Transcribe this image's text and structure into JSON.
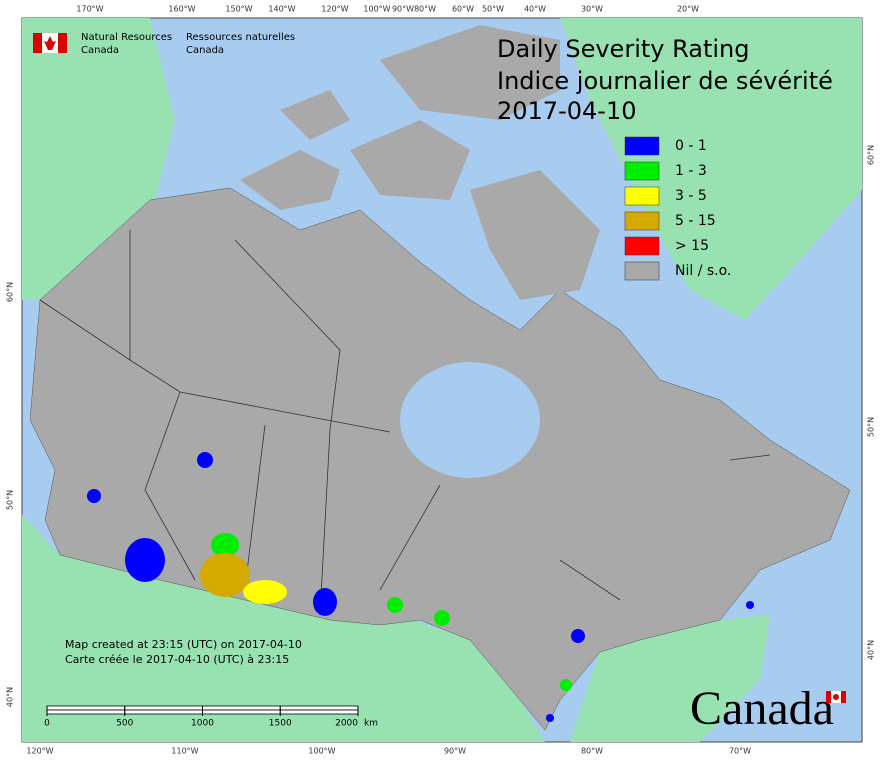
{
  "header": {
    "agency_en": [
      "Natural Resources",
      "Canada"
    ],
    "agency_fr": [
      "Ressources naturelles",
      "Canada"
    ]
  },
  "title": [
    "Daily Severity Rating",
    "Indice journalier de sévérité",
    "2017-04-10"
  ],
  "legend": [
    {
      "label": "0 - 1",
      "color": "#0000ff"
    },
    {
      "label": "1 - 3",
      "color": "#00ee00"
    },
    {
      "label": "3 - 5",
      "color": "#ffff00"
    },
    {
      "label": "5 - 15",
      "color": "#d4aa00"
    },
    {
      "label": "> 15",
      "color": "#ff0000"
    },
    {
      "label": "Nil / s.o.",
      "color": "#a9a9a9"
    }
  ],
  "top_longitudes": [
    "170°W",
    "160°W",
    "150°W",
    "140°W",
    "120°W",
    "100°W",
    "90°W",
    "80°W",
    "60°W",
    "50°W",
    "40°W",
    "30°W",
    "20°W"
  ],
  "bottom_longitudes": [
    "120°W",
    "110°W",
    "100°W",
    "90°W",
    "80°W",
    "70°W"
  ],
  "left_latitudes": [
    "60°N",
    "50°N",
    "40°N"
  ],
  "right_latitudes": [
    "60°N",
    "50°N",
    "40°N"
  ],
  "footer": [
    "Map created at 23:15 (UTC) on 2017-04-10",
    "Carte créée le 2017-04-10 (UTC) à 23:15"
  ],
  "scale_bar": {
    "ticks": [
      0,
      500,
      1000,
      1500,
      2000
    ],
    "unit": "km"
  },
  "wordmark": "Canada"
}
